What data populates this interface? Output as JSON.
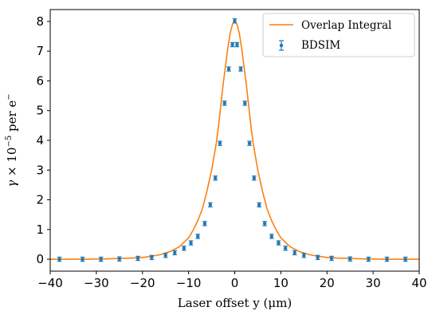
{
  "chart_data": {
    "type": "line",
    "title": "",
    "xlabel": "Laser offset y (μm)",
    "ylabel_parts": {
      "gamma": "γ",
      "times": " × 10",
      "exp": "−5",
      "per": " per e",
      "charge": "−"
    },
    "xlim": [
      -40,
      40
    ],
    "ylim": [
      -0.4,
      8.4
    ],
    "x_ticks": [
      -40,
      -30,
      -20,
      -10,
      0,
      10,
      20,
      30,
      40
    ],
    "x_tick_labels": [
      "−40",
      "−30",
      "−20",
      "−10",
      "0",
      "10",
      "20",
      "30",
      "40"
    ],
    "y_ticks": [
      0,
      1,
      2,
      3,
      4,
      5,
      6,
      7,
      8
    ],
    "y_tick_labels": [
      "0",
      "1",
      "2",
      "3",
      "4",
      "5",
      "6",
      "7",
      "8"
    ],
    "grid": false,
    "legend_position": "top-right",
    "colors": {
      "line": "#ff7f0e",
      "points": "#1f77b4"
    },
    "series": [
      {
        "name": "Overlap Integral",
        "kind": "line",
        "x": [
          -40,
          -38,
          -36,
          -34,
          -32,
          -30,
          -28,
          -26,
          -24,
          -22,
          -20,
          -18,
          -16,
          -14,
          -12,
          -10,
          -9,
          -8,
          -7,
          -6,
          -5,
          -4,
          -3.5,
          -3,
          -2.5,
          -2,
          -1.5,
          -1,
          -0.5,
          0,
          0.5,
          1,
          1.5,
          2,
          2.5,
          3,
          3.5,
          4,
          5,
          6,
          7,
          8,
          9,
          10,
          12,
          14,
          16,
          18,
          20,
          22,
          24,
          26,
          28,
          30,
          32,
          34,
          36,
          38,
          40
        ],
        "y": [
          0.0,
          0.0,
          0.0,
          0.0,
          0.0,
          0.01,
          0.01,
          0.02,
          0.03,
          0.04,
          0.06,
          0.1,
          0.16,
          0.26,
          0.42,
          0.72,
          0.98,
          1.3,
          1.7,
          2.3,
          3.0,
          3.9,
          4.5,
          5.2,
          5.9,
          6.5,
          7.1,
          7.6,
          7.9,
          8.02,
          7.9,
          7.6,
          7.1,
          6.5,
          5.9,
          5.2,
          4.5,
          3.9,
          3.0,
          2.3,
          1.7,
          1.3,
          0.98,
          0.72,
          0.42,
          0.26,
          0.16,
          0.1,
          0.06,
          0.04,
          0.03,
          0.02,
          0.01,
          0.01,
          0.0,
          0.0,
          0.0,
          0.0,
          0.0
        ]
      },
      {
        "name": "BDSIM",
        "kind": "errorbar",
        "x": [
          -38,
          -33,
          -29,
          -25,
          -21,
          -18,
          -15,
          -13,
          -11,
          -9.5,
          -8,
          -6.5,
          -5.3,
          -4.2,
          -3.2,
          -2.2,
          -1.3,
          -0.5,
          0,
          0.5,
          1.3,
          2.2,
          3.2,
          4.2,
          5.3,
          6.5,
          8,
          9.5,
          11,
          13,
          15,
          18,
          21,
          25,
          29,
          33,
          37
        ],
        "y": [
          0.0,
          0.0,
          0.0,
          0.01,
          0.03,
          0.06,
          0.13,
          0.22,
          0.37,
          0.55,
          0.77,
          1.2,
          1.83,
          2.73,
          3.9,
          5.25,
          6.4,
          7.22,
          8.02,
          7.22,
          6.4,
          5.25,
          3.9,
          2.73,
          1.83,
          1.2,
          0.77,
          0.55,
          0.37,
          0.22,
          0.13,
          0.06,
          0.03,
          0.01,
          0.0,
          0.0,
          0.0
        ],
        "yerr": [
          0.03,
          0.03,
          0.03,
          0.03,
          0.03,
          0.03,
          0.03,
          0.03,
          0.03,
          0.03,
          0.04,
          0.04,
          0.04,
          0.05,
          0.05,
          0.06,
          0.06,
          0.06,
          0.06,
          0.06,
          0.06,
          0.06,
          0.05,
          0.05,
          0.04,
          0.04,
          0.04,
          0.03,
          0.03,
          0.03,
          0.03,
          0.03,
          0.03,
          0.03,
          0.03,
          0.03,
          0.03
        ]
      }
    ]
  }
}
